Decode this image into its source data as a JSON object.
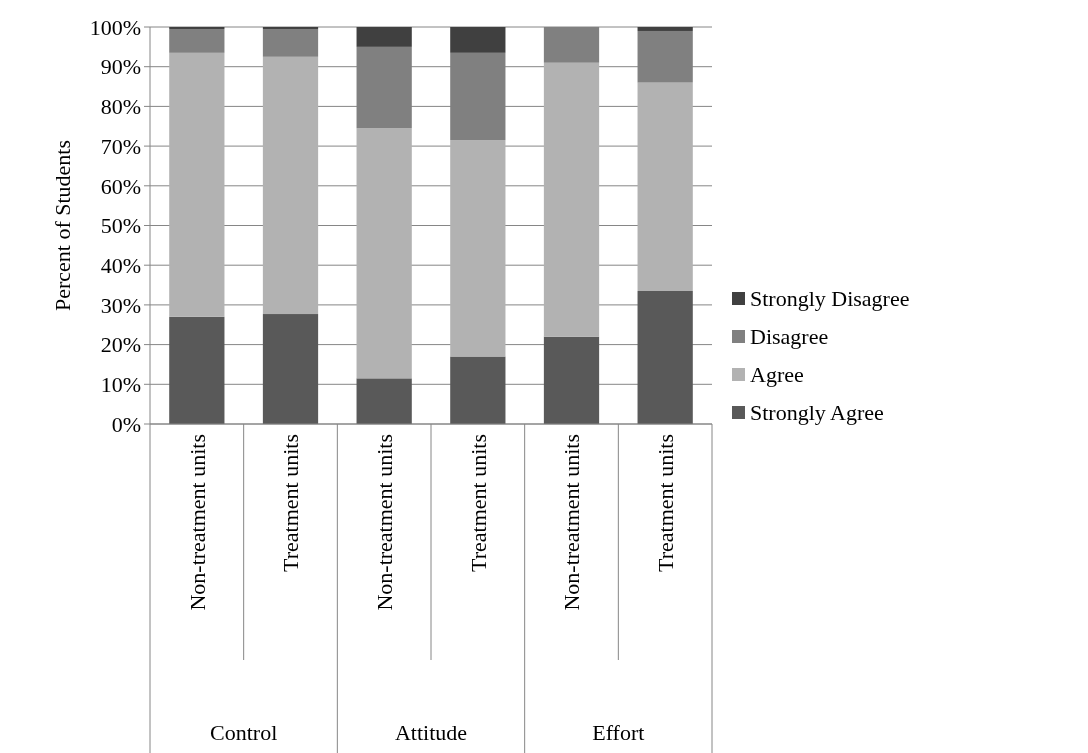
{
  "chart_data": {
    "type": "bar",
    "stacked": true,
    "ylabel": "Percent of Students",
    "categories": [
      "Non-treatment units",
      "Treatment units",
      "Non-treatment units",
      "Treatment units",
      "Non-treatment units",
      "Treatment units"
    ],
    "annotations": [
      "Control",
      "Attitude",
      "Effort"
    ],
    "series": [
      {
        "name": "Strongly Agree",
        "color": "#595959",
        "values": [
          27,
          27.7,
          11.5,
          17,
          22,
          33.5
        ]
      },
      {
        "name": "Agree",
        "color": "#b2b2b2",
        "values": [
          66.5,
          64.8,
          63,
          54.5,
          69,
          52.5
        ]
      },
      {
        "name": "Disagree",
        "color": "#808080",
        "values": [
          6,
          7,
          20.5,
          22,
          9,
          13
        ]
      },
      {
        "name": "Strongly Disagree",
        "color": "#404040",
        "values": [
          0.5,
          0.5,
          5,
          6.5,
          0,
          1
        ]
      }
    ],
    "ylim": [
      0,
      100
    ],
    "yticks": [
      {
        "value": 0,
        "label": "0%"
      },
      {
        "value": 10,
        "label": "10%"
      },
      {
        "value": 20,
        "label": "20%"
      },
      {
        "value": 30,
        "label": "30%"
      },
      {
        "value": 40,
        "label": "40%"
      },
      {
        "value": 50,
        "label": "50%"
      },
      {
        "value": 60,
        "label": "60%"
      },
      {
        "value": 70,
        "label": "70%"
      },
      {
        "value": 80,
        "label": "80%"
      },
      {
        "value": 90,
        "label": "90%"
      },
      {
        "value": 100,
        "label": "100%"
      }
    ],
    "grid": "y",
    "legend": "right"
  }
}
